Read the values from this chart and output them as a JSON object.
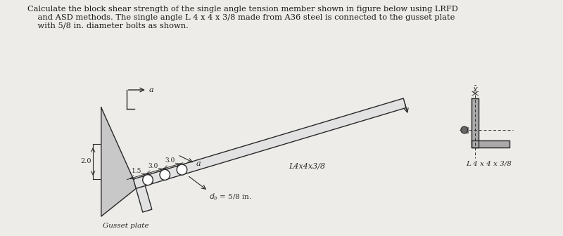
{
  "bg_color": "#eeece8",
  "text_color": "#1a1a1a",
  "title_text": "Calculate the block shear strength of the single angle tension member shown in figure below using LRFD\n    and ASD methods. The single angle L 4 x 4 x 3/8 made from A36 steel is connected to the gusset plate\n    with 5/8 in. diameter bolts as shown.",
  "label_L4x4x38": "L4x4x3/8",
  "label_db": "$d_b$ = 5/8 in.",
  "label_gusset": "Gusset plate",
  "label_a_top": "a",
  "label_a_bottom": "a",
  "label_20": "2.0",
  "label_spacing": "1.5  3.0  3.0",
  "label_L4x4x38_side": "L 4 x 4 x 3/8",
  "label_X_bar": "$\\bar{X}$",
  "line_color": "#2a2a2a",
  "fill_gusset": "#c8c8c8",
  "fill_angle": "#e2e2e2",
  "fill_dark": "#aaaaaa"
}
